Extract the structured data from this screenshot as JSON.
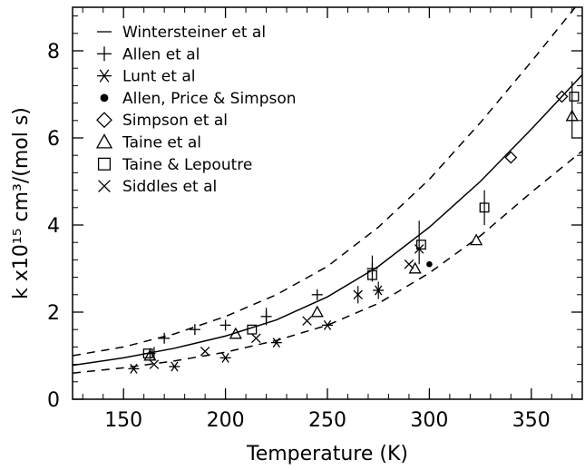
{
  "chart_data": {
    "type": "scatter",
    "title": "",
    "xlabel": "Temperature (K)",
    "ylabel": "k x10¹⁵ cm³/(mol s)",
    "xlim": [
      125,
      375
    ],
    "ylim": [
      0,
      9
    ],
    "x_ticks": [
      "150",
      "200",
      "250",
      "300",
      "350"
    ],
    "y_ticks": [
      "0",
      "2",
      "4",
      "6",
      "8"
    ],
    "x_tick_values": [
      150,
      200,
      250,
      300,
      350
    ],
    "y_tick_values": [
      0,
      2,
      4,
      6,
      8
    ],
    "x_minor_step": 10,
    "y_minor_step": 0.4,
    "grid": false,
    "legend_position": "top-left",
    "curves": [
      {
        "style": "solid",
        "x": [
          125,
          150,
          175,
          200,
          225,
          250,
          275,
          300,
          325,
          350,
          375
        ],
        "y": [
          0.78,
          0.95,
          1.17,
          1.45,
          1.82,
          2.35,
          3.05,
          3.95,
          5.0,
          6.2,
          7.45
        ]
      },
      {
        "style": "dashed",
        "x": [
          125,
          150,
          175,
          200,
          225,
          250,
          275,
          300,
          325,
          350,
          375
        ],
        "y": [
          1.0,
          1.2,
          1.5,
          1.9,
          2.4,
          3.05,
          3.95,
          5.05,
          6.35,
          7.75,
          9.2
        ]
      },
      {
        "style": "dashed",
        "x": [
          125,
          150,
          175,
          200,
          225,
          250,
          275,
          300,
          325,
          350,
          375
        ],
        "y": [
          0.6,
          0.72,
          0.88,
          1.08,
          1.35,
          1.7,
          2.2,
          2.9,
          3.75,
          4.75,
          5.7
        ]
      }
    ],
    "series": [
      {
        "name": "Wintersteiner et al",
        "marker": "dash",
        "points": []
      },
      {
        "name": "Allen et al",
        "marker": "plus",
        "points": [
          [
            163,
            1.05
          ],
          [
            170,
            1.4
          ],
          [
            185,
            1.6
          ],
          [
            200,
            1.7
          ],
          [
            220,
            1.9
          ],
          [
            245,
            2.4
          ],
          [
            272,
            3.0
          ]
        ]
      },
      {
        "name": "Lunt et al",
        "marker": "asterisk",
        "points": [
          [
            155,
            0.7
          ],
          [
            175,
            0.75
          ],
          [
            200,
            0.95
          ],
          [
            225,
            1.3
          ],
          [
            250,
            1.7
          ],
          [
            275,
            2.5
          ]
        ]
      },
      {
        "name": "Allen, Price & Simpson",
        "marker": "dot",
        "points": [
          [
            300,
            3.1
          ]
        ]
      },
      {
        "name": "Simpson et al",
        "marker": "diamond",
        "points": [
          [
            340,
            5.55
          ],
          [
            365,
            6.95
          ]
        ]
      },
      {
        "name": "Taine et al",
        "marker": "triangle",
        "points": [
          [
            163,
            1.0
          ],
          [
            205,
            1.5
          ],
          [
            245,
            2.0
          ],
          [
            293,
            3.0
          ],
          [
            323,
            3.65
          ],
          [
            370,
            6.5
          ]
        ]
      },
      {
        "name": "Taine & Lepoutre",
        "marker": "square",
        "points": [
          [
            162,
            1.05
          ],
          [
            213,
            1.6
          ],
          [
            272,
            2.85
          ],
          [
            296,
            3.55
          ],
          [
            327,
            4.4
          ],
          [
            371,
            6.95
          ]
        ]
      },
      {
        "name": "Siddles et al",
        "marker": "cross",
        "points": [
          [
            165,
            0.8
          ],
          [
            190,
            1.1
          ],
          [
            215,
            1.4
          ],
          [
            240,
            1.8
          ],
          [
            265,
            2.4
          ],
          [
            290,
            3.1
          ],
          [
            295,
            3.45
          ]
        ]
      }
    ],
    "error_bars": [
      [
        165,
        0.9,
        1.2
      ],
      [
        220,
        1.7,
        2.1
      ],
      [
        265,
        2.2,
        2.6
      ],
      [
        272,
        2.7,
        3.3
      ],
      [
        275,
        2.3,
        2.7
      ],
      [
        295,
        3.1,
        4.1
      ],
      [
        327,
        4.0,
        4.8
      ],
      [
        370,
        6.0,
        7.3
      ]
    ]
  }
}
